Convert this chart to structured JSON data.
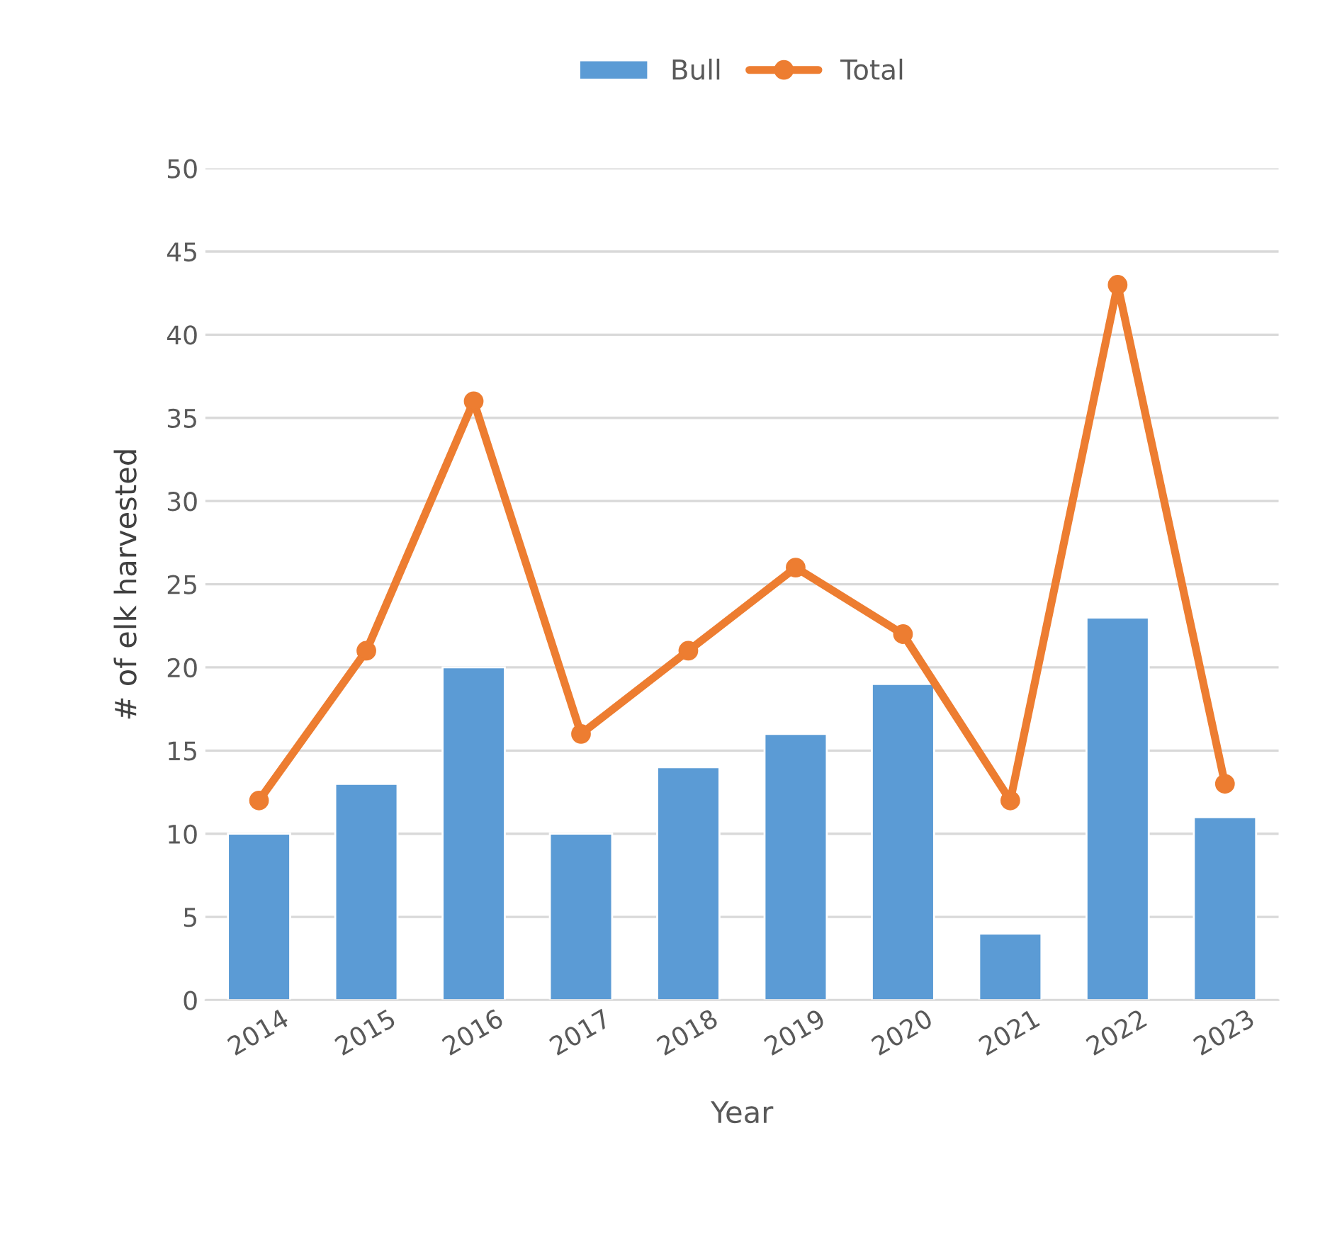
{
  "chart_data": {
    "type": "bar",
    "xlabel": "Year",
    "ylabel": "# of elk harvested",
    "categories": [
      "2014",
      "2015",
      "2016",
      "2017",
      "2018",
      "2019",
      "2020",
      "2021",
      "2022",
      "2023"
    ],
    "series": [
      {
        "name": "Bull",
        "color": "#5b9bd5",
        "values": [
          10,
          13,
          20,
          10,
          14,
          16,
          19,
          4,
          23,
          11
        ]
      },
      {
        "name": "Total",
        "type": "line",
        "color": "#ed7d31",
        "marker": "circle",
        "line_style": "solid",
        "values": [
          12,
          21,
          36,
          16,
          21,
          26,
          22,
          12,
          43,
          13
        ]
      }
    ],
    "ylim": [
      0,
      50
    ],
    "yticks": [
      0,
      5,
      10,
      15,
      20,
      25,
      30,
      35,
      40,
      45,
      50
    ],
    "grid": "y",
    "legend": "top"
  }
}
